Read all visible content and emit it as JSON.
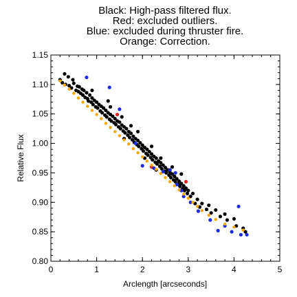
{
  "chart_data": {
    "type": "scatter",
    "title_lines": [
      "Black: High-pass filtered flux.",
      "Red: excluded outliers.",
      "Blue: excluded during thruster fire.",
      "Orange: Correction."
    ],
    "xlabel": "Arclength [arcseconds]",
    "ylabel": "Relative Flux",
    "xlim": [
      0,
      5
    ],
    "ylim": [
      0.8,
      1.15
    ],
    "x_ticks": [
      "0",
      "1",
      "2",
      "3",
      "4",
      "5"
    ],
    "y_ticks": [
      "0.80",
      "0.85",
      "0.90",
      "0.95",
      "1.00",
      "1.05",
      "1.10",
      "1.15"
    ],
    "grid": false,
    "colors": {
      "black": "#000000",
      "red": "#e0201c",
      "blue": "#1c2ce0",
      "orange": "#f5a600"
    },
    "series": [
      {
        "color": "black",
        "points": [
          [
            0.2,
            1.108
          ],
          [
            0.25,
            1.103
          ],
          [
            0.3,
            1.118
          ],
          [
            0.32,
            1.1
          ],
          [
            0.38,
            1.113
          ],
          [
            0.4,
            1.098
          ],
          [
            0.45,
            1.094
          ],
          [
            0.48,
            1.108
          ],
          [
            0.5,
            1.102
          ],
          [
            0.55,
            1.09
          ],
          [
            0.58,
            1.097
          ],
          [
            0.6,
            1.088
          ],
          [
            0.62,
            1.096
          ],
          [
            0.65,
            1.085
          ],
          [
            0.68,
            1.092
          ],
          [
            0.7,
            1.082
          ],
          [
            0.72,
            1.09
          ],
          [
            0.75,
            1.078
          ],
          [
            0.78,
            1.086
          ],
          [
            0.8,
            1.076
          ],
          [
            0.82,
            1.072
          ],
          [
            0.85,
            1.082
          ],
          [
            0.88,
            1.07
          ],
          [
            0.9,
            1.077
          ],
          [
            0.92,
            1.066
          ],
          [
            0.95,
            1.073
          ],
          [
            0.98,
            1.062
          ],
          [
            1.0,
            1.07
          ],
          [
            1.02,
            1.06
          ],
          [
            1.05,
            1.066
          ],
          [
            1.08,
            1.055
          ],
          [
            1.1,
            1.063
          ],
          [
            1.12,
            1.052
          ],
          [
            1.15,
            1.06
          ],
          [
            1.18,
            1.048
          ],
          [
            1.2,
            1.056
          ],
          [
            1.22,
            1.045
          ],
          [
            1.25,
            1.052
          ],
          [
            1.28,
            1.041
          ],
          [
            1.3,
            1.049
          ],
          [
            1.32,
            1.038
          ],
          [
            1.35,
            1.046
          ],
          [
            1.38,
            1.035
          ],
          [
            1.4,
            1.042
          ],
          [
            1.42,
            1.032
          ],
          [
            1.45,
            1.038
          ],
          [
            1.48,
            1.028
          ],
          [
            1.5,
            1.036
          ],
          [
            1.52,
            1.025
          ],
          [
            1.55,
            1.031
          ],
          [
            1.58,
            1.021
          ],
          [
            1.6,
            1.028
          ],
          [
            1.62,
            1.018
          ],
          [
            1.65,
            1.025
          ],
          [
            1.68,
            1.014
          ],
          [
            1.7,
            1.02
          ],
          [
            1.72,
            1.01
          ],
          [
            1.75,
            1.017
          ],
          [
            1.78,
            1.006
          ],
          [
            1.8,
            1.012
          ],
          [
            1.82,
            1.002
          ],
          [
            1.85,
            1.008
          ],
          [
            1.88,
            0.998
          ],
          [
            1.9,
            1.005
          ],
          [
            1.92,
            0.995
          ],
          [
            1.95,
            1.001
          ],
          [
            1.98,
            0.991
          ],
          [
            2.0,
            0.997
          ],
          [
            2.02,
            0.987
          ],
          [
            2.05,
            0.993
          ],
          [
            2.08,
            0.983
          ],
          [
            2.1,
            0.99
          ],
          [
            2.12,
            0.98
          ],
          [
            2.15,
            0.986
          ],
          [
            2.18,
            0.976
          ],
          [
            2.2,
            0.982
          ],
          [
            2.22,
            0.972
          ],
          [
            2.25,
            0.978
          ],
          [
            2.28,
            0.968
          ],
          [
            2.3,
            0.975
          ],
          [
            2.32,
            0.965
          ],
          [
            2.35,
            0.97
          ],
          [
            2.38,
            0.961
          ],
          [
            2.4,
            0.967
          ],
          [
            2.42,
            0.957
          ],
          [
            2.45,
            0.963
          ],
          [
            2.48,
            0.953
          ],
          [
            2.5,
            0.959
          ],
          [
            2.52,
            0.95
          ],
          [
            2.55,
            0.955
          ],
          [
            2.58,
            0.946
          ],
          [
            2.6,
            0.951
          ],
          [
            2.62,
            0.942
          ],
          [
            2.65,
            0.948
          ],
          [
            2.68,
            0.938
          ],
          [
            2.7,
            0.944
          ],
          [
            2.72,
            0.935
          ],
          [
            2.75,
            0.94
          ],
          [
            2.78,
            0.931
          ],
          [
            2.8,
            0.936
          ],
          [
            2.82,
            0.927
          ],
          [
            2.85,
            0.932
          ],
          [
            2.88,
            0.923
          ],
          [
            2.9,
            0.928
          ],
          [
            2.92,
            0.92
          ],
          [
            2.95,
            0.924
          ],
          [
            2.98,
            0.915
          ],
          [
            3.0,
            0.92
          ],
          [
            1.3,
            1.062
          ],
          [
            1.55,
            1.045
          ],
          [
            1.75,
            1.03
          ],
          [
            1.9,
            1.02
          ],
          [
            2.2,
            0.995
          ],
          [
            2.4,
            0.975
          ],
          [
            2.65,
            0.96
          ],
          [
            2.85,
            0.948
          ],
          [
            0.9,
            1.09
          ],
          [
            1.25,
            1.072
          ],
          [
            1.6,
            1.008
          ],
          [
            2.05,
            0.975
          ],
          [
            2.3,
            0.955
          ],
          [
            3.05,
            0.91
          ],
          [
            3.1,
            0.915
          ],
          [
            3.15,
            0.898
          ],
          [
            3.2,
            0.905
          ],
          [
            3.25,
            0.892
          ],
          [
            3.3,
            0.898
          ],
          [
            3.4,
            0.888
          ],
          [
            3.45,
            0.895
          ],
          [
            3.5,
            0.882
          ],
          [
            3.6,
            0.887
          ],
          [
            3.7,
            0.876
          ],
          [
            3.8,
            0.88
          ],
          [
            3.85,
            0.87
          ],
          [
            4.0,
            0.872
          ],
          [
            4.05,
            0.86
          ],
          [
            4.2,
            0.856
          ],
          [
            4.25,
            0.85
          ]
        ]
      },
      {
        "color": "red",
        "points": [
          [
            1.45,
            1.049
          ],
          [
            2.2,
            0.96
          ],
          [
            2.95,
            0.935
          ]
        ]
      },
      {
        "color": "blue",
        "points": [
          [
            0.78,
            1.112
          ],
          [
            1.28,
            1.095
          ],
          [
            1.5,
            1.058
          ],
          [
            1.85,
            1.0
          ],
          [
            2.0,
            0.962
          ],
          [
            2.25,
            0.958
          ],
          [
            2.45,
            0.952
          ],
          [
            2.6,
            0.955
          ],
          [
            2.72,
            0.95
          ],
          [
            2.75,
            0.93
          ],
          [
            2.85,
            0.92
          ],
          [
            2.9,
            0.91
          ],
          [
            3.05,
            0.9
          ],
          [
            3.22,
            0.885
          ],
          [
            3.48,
            0.87
          ],
          [
            3.65,
            0.852
          ],
          [
            3.8,
            0.86
          ],
          [
            3.95,
            0.85
          ],
          [
            4.1,
            0.893
          ],
          [
            4.15,
            0.845
          ],
          [
            4.28,
            0.845
          ]
        ]
      },
      {
        "color": "orange",
        "points": [
          [
            0.2,
            1.106
          ],
          [
            0.3,
            1.099
          ],
          [
            0.4,
            1.092
          ],
          [
            0.5,
            1.085
          ],
          [
            0.6,
            1.077
          ],
          [
            0.7,
            1.07
          ],
          [
            0.8,
            1.063
          ],
          [
            0.9,
            1.056
          ],
          [
            1.0,
            1.049
          ],
          [
            1.1,
            1.042
          ],
          [
            1.2,
            1.034
          ],
          [
            1.3,
            1.027
          ],
          [
            1.4,
            1.02
          ],
          [
            1.5,
            1.013
          ],
          [
            1.6,
            1.006
          ],
          [
            1.7,
            0.999
          ],
          [
            1.8,
            0.991
          ],
          [
            1.9,
            0.984
          ],
          [
            2.0,
            0.977
          ],
          [
            2.1,
            0.97
          ],
          [
            2.2,
            0.963
          ],
          [
            2.3,
            0.956
          ],
          [
            2.4,
            0.949
          ],
          [
            2.5,
            0.942
          ],
          [
            2.6,
            0.935
          ],
          [
            2.7,
            0.928
          ],
          [
            2.8,
            0.921
          ],
          [
            2.9,
            0.914
          ],
          [
            3.0,
            0.907
          ],
          [
            3.1,
            0.9
          ],
          [
            3.2,
            0.893
          ],
          [
            3.3,
            0.886
          ],
          [
            3.45,
            0.878
          ],
          [
            3.6,
            0.871
          ],
          [
            3.8,
            0.863
          ],
          [
            4.0,
            0.858
          ],
          [
            4.2,
            0.853
          ]
        ]
      }
    ]
  }
}
